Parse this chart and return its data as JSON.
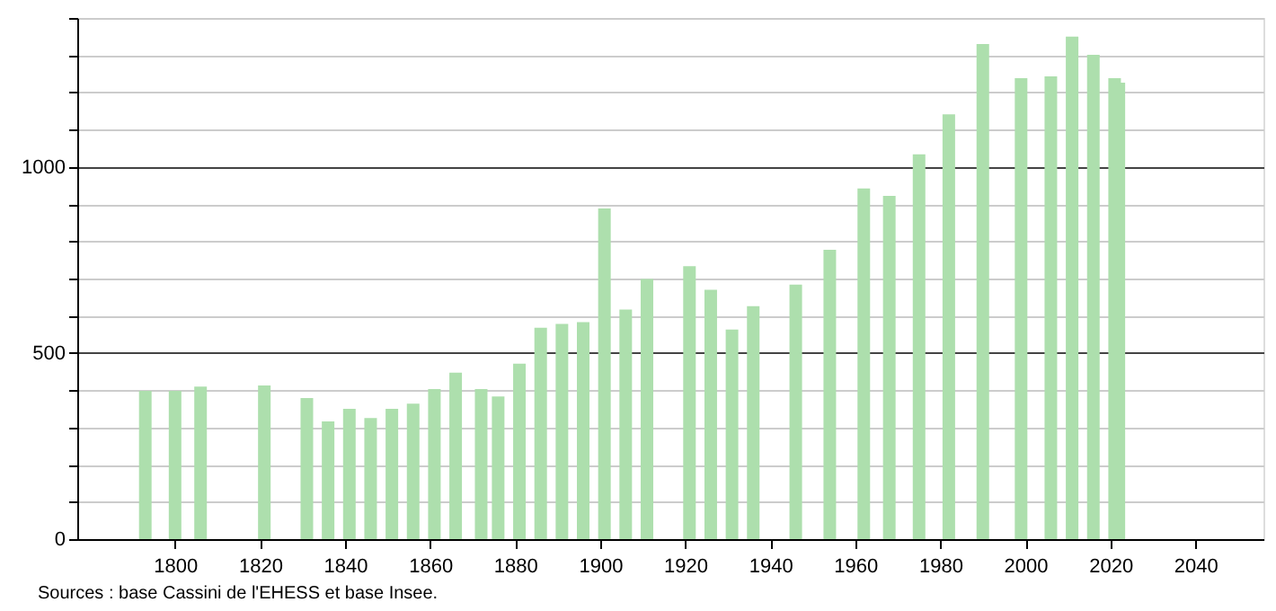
{
  "chart_data": {
    "type": "bar",
    "x": [
      1793,
      1800,
      1806,
      1821,
      1831,
      1836,
      1841,
      1846,
      1851,
      1856,
      1861,
      1866,
      1872,
      1876,
      1881,
      1886,
      1891,
      1896,
      1901,
      1906,
      1911,
      1921,
      1926,
      1931,
      1936,
      1946,
      1954,
      1962,
      1968,
      1975,
      1982,
      1990,
      1999,
      2006,
      2011,
      2016,
      2021,
      2022
    ],
    "series": [
      {
        "color": "#addfad",
        "values": [
          398,
          398,
          410,
          413,
          379,
          316,
          350,
          325,
          350,
          364,
          403,
          447,
          403,
          383,
          471,
          568,
          578,
          583,
          888,
          617,
          699,
          733,
          670,
          563,
          626,
          684,
          777,
          942,
          922,
          1034,
          1141,
          1330,
          1238,
          1243,
          1350,
          1301,
          1238,
          1226
        ]
      }
    ],
    "xlim": [
      1777,
      2056
    ],
    "xticks": [
      1800,
      1820,
      1840,
      1860,
      1880,
      1900,
      1920,
      1940,
      1960,
      1980,
      2000,
      2020,
      2040
    ],
    "ylim": [
      0,
      1400
    ],
    "yticks": [
      0,
      {
        "value": 100,
        "label": null
      },
      {
        "value": 200,
        "label": null
      },
      {
        "value": 300,
        "label": null
      },
      {
        "value": 400,
        "label": null
      },
      500,
      {
        "value": 600,
        "label": null
      },
      {
        "value": 700,
        "label": null
      },
      {
        "value": 800,
        "label": null
      },
      {
        "value": 900,
        "label": null
      },
      1000,
      {
        "value": 1100,
        "label": null
      },
      {
        "value": 1200,
        "label": null
      },
      {
        "value": 1300,
        "label": null
      },
      {
        "value": 1400,
        "label": null
      }
    ],
    "grid": "y",
    "annotations": [
      "Sources : base Cassini de l'EHESS et base Insee."
    ]
  }
}
